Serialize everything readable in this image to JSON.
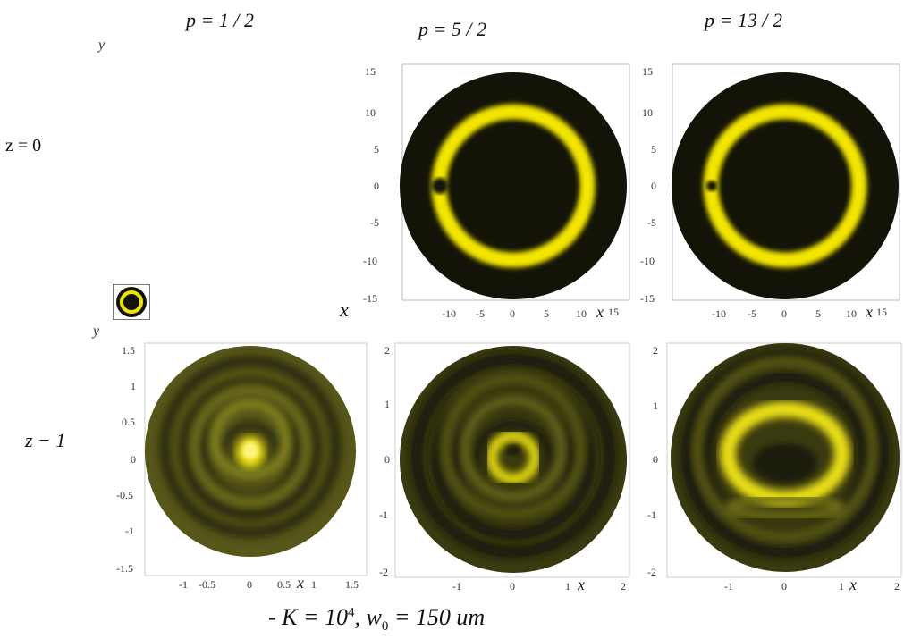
{
  "columns": [
    {
      "title": "p = 1 / 2"
    },
    {
      "title": "p = 5 / 2"
    },
    {
      "title": "p = 13 / 2"
    }
  ],
  "rows": [
    {
      "label": "z = 0"
    },
    {
      "label": "z − 1"
    }
  ],
  "axis_letters": {
    "x": "x",
    "y": "y"
  },
  "panels": {
    "top_mid": {
      "xticks": [
        "-10",
        "-5",
        "0",
        "5",
        "10"
      ],
      "yticks": [
        "15",
        "10",
        "5",
        "0",
        "-5",
        "-10",
        "-15"
      ],
      "xlabel": "x",
      "xlabel_tail": "15"
    },
    "top_right": {
      "xticks": [
        "-10",
        "-5",
        "0",
        "5",
        "10"
      ],
      "yticks": [
        "15",
        "10",
        "5",
        "0",
        "-5",
        "-10",
        "-15"
      ],
      "xlabel": "x",
      "xlabel_tail": "15"
    },
    "bot_left": {
      "xticks": [
        "-1",
        "-0.5",
        "0",
        "0.5"
      ],
      "xtail": [
        "1",
        "1.5"
      ],
      "yticks": [
        "1.5",
        "1",
        "0.5",
        "0",
        "-0.5",
        "-1",
        "-1.5"
      ],
      "xlabel": "x"
    },
    "bot_mid": {
      "xticks": [
        "-1",
        "0",
        "1"
      ],
      "xtail": [
        "2"
      ],
      "yticks": [
        "2",
        "1",
        "0",
        "-1",
        "-2"
      ],
      "xlabel": "x"
    },
    "bot_right": {
      "xticks": [
        "-1",
        "0",
        "1"
      ],
      "xtail": [
        "2"
      ],
      "yticks": [
        "2",
        "1",
        "0",
        "-1",
        "-2"
      ],
      "xlabel": "x"
    }
  },
  "caption": {
    "prefix": "- K = 10",
    "exp": "4",
    "sep": ",  w",
    "sub": "0",
    "suffix": " = 150 um"
  },
  "colors": {
    "ring": "#f2e600",
    "disk_dark": "#131307",
    "olive": "#5a5a18",
    "frame": "#cccccc"
  }
}
